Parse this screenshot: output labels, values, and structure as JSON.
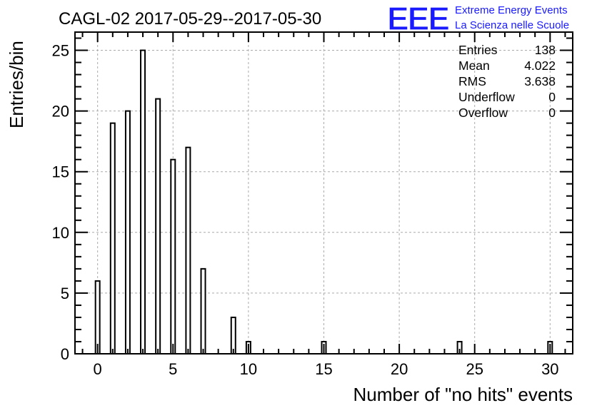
{
  "chart_data": {
    "type": "bar",
    "title": "CAGL-02 2017-05-29--2017-05-30",
    "xlabel": "Number of \"no hits\" events",
    "ylabel": "Entries/bin",
    "xlim": [
      -1.5,
      31.5
    ],
    "ylim": [
      0,
      26.5
    ],
    "xticks": [
      0,
      5,
      10,
      15,
      20,
      25,
      30
    ],
    "yticks": [
      0,
      5,
      10,
      15,
      20,
      25
    ],
    "grid": true,
    "bins": [
      {
        "x": 0,
        "count": 6
      },
      {
        "x": 1,
        "count": 19
      },
      {
        "x": 2,
        "count": 20
      },
      {
        "x": 3,
        "count": 25
      },
      {
        "x": 4,
        "count": 21
      },
      {
        "x": 5,
        "count": 16
      },
      {
        "x": 6,
        "count": 17
      },
      {
        "x": 7,
        "count": 7
      },
      {
        "x": 9,
        "count": 3
      },
      {
        "x": 10,
        "count": 1
      },
      {
        "x": 15,
        "count": 1
      },
      {
        "x": 24,
        "count": 1
      },
      {
        "x": 30,
        "count": 1
      }
    ]
  },
  "stats": [
    {
      "label": "Entries",
      "value": "138"
    },
    {
      "label": "Mean",
      "value": "4.022"
    },
    {
      "label": "RMS",
      "value": "3.638"
    },
    {
      "label": "Underflow",
      "value": "0"
    },
    {
      "label": "Overflow",
      "value": "0"
    }
  ],
  "logo": {
    "mark": "EEE",
    "line1": "Extreme Energy Events",
    "line2": "La Scienza nelle Scuole",
    "color": "#1a1aff"
  }
}
